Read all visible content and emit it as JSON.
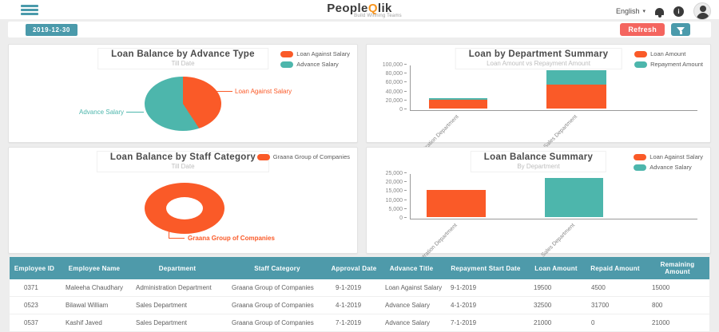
{
  "header": {
    "logo_people": "People",
    "logo_q": "Q",
    "logo_lik": "lik",
    "tagline": "Build Winning Teams",
    "language": "English",
    "caret_glyph": "▾",
    "info_glyph": "i"
  },
  "toolbar": {
    "date": "2019-12-30",
    "refresh": "Refresh"
  },
  "chart_data": [
    {
      "type": "pie",
      "title": "Loan Balance by  Advance Type",
      "subtitle": "Till Date",
      "slices": [
        {
          "label": "Loan Against Salary",
          "value": 15000,
          "color": "#fa5a28"
        },
        {
          "label": "Advance Salary",
          "value": 21800,
          "color": "#4db6ac"
        }
      ],
      "legend": [
        {
          "label": "Loan Against Salary",
          "color": "#fa5a28"
        },
        {
          "label": "Advance Salary",
          "color": "#4db6ac"
        }
      ],
      "legend_position": "top-right"
    },
    {
      "type": "bar",
      "stacked": true,
      "title": "Loan by Department Summary",
      "subtitle": "Loan Amount vs Repayment Amount",
      "categories": [
        "Administration Department",
        "Sales Department"
      ],
      "series": [
        {
          "name": "Loan Amount",
          "color": "#fa5a28",
          "values": [
            19500,
            53500
          ]
        },
        {
          "name": "Repayment Amount",
          "color": "#4db6ac",
          "values": [
            4500,
            31700
          ]
        }
      ],
      "ylim": [
        0,
        100000
      ],
      "ymax": 100000,
      "yticks": [
        "100,000",
        "80,000",
        "60,000",
        "40,000",
        "20,000",
        "0"
      ],
      "legend": [
        {
          "label": "Loan Amount",
          "color": "#fa5a28"
        },
        {
          "label": "Repayment Amount",
          "color": "#4db6ac"
        }
      ],
      "legend_position": "top-right",
      "grid": false
    },
    {
      "type": "pie",
      "donut": true,
      "title": "Loan Balance by  Staff Category",
      "subtitle": "Till Date",
      "slices": [
        {
          "label": "Graana Group of Companies",
          "value": 36800,
          "color": "#fa5a28"
        }
      ],
      "legend": [
        {
          "label": "Graana Group of Companies",
          "color": "#fa5a28"
        }
      ],
      "legend_position": "top-right"
    },
    {
      "type": "bar",
      "stacked": false,
      "title": "Loan Balance Summary",
      "subtitle": "By Department",
      "categories": [
        "Administration Department",
        "Sales Department"
      ],
      "series": [
        {
          "name": "Loan Against Salary",
          "color": "#fa5a28",
          "values": [
            15000,
            0
          ]
        },
        {
          "name": "Advance Salary",
          "color": "#4db6ac",
          "values": [
            0,
            21800
          ]
        }
      ],
      "ylim": [
        0,
        25000
      ],
      "ymax": 25000,
      "yticks": [
        "25,000",
        "20,000",
        "15,000",
        "10,000",
        "5,000",
        "0"
      ],
      "legend": [
        {
          "label": "Loan Against Salary",
          "color": "#fa5a28"
        },
        {
          "label": "Advance Salary",
          "color": "#4db6ac"
        }
      ],
      "legend_position": "top-right",
      "grid": false
    }
  ],
  "table": {
    "columns": [
      "Employee ID",
      "Employee Name",
      "Department",
      "Staff Category",
      "Approval Date",
      "Advance Title",
      "Repayment Start Date",
      "Loan Amount",
      "Repaid Amount",
      "Remaining Amount"
    ],
    "rows": [
      [
        "0371",
        "Maleeha Chaudhary",
        "Administration Department",
        "Graana Group of Companies",
        "9-1-2019",
        "Loan Against Salary",
        "9-1-2019",
        "19500",
        "4500",
        "15000"
      ],
      [
        "0523",
        "Bilawal William",
        "Sales Department",
        "Graana Group of Companies",
        "4-1-2019",
        "Advance Salary",
        "4-1-2019",
        "32500",
        "31700",
        "800"
      ],
      [
        "0537",
        "Kashif Javed",
        "Sales Department",
        "Graana Group of Companies",
        "7-1-2019",
        "Advance Salary",
        "7-1-2019",
        "21000",
        "0",
        "21000"
      ]
    ]
  },
  "colors": {
    "orange": "#fa5a28",
    "teal": "#4db6ac",
    "ui_teal": "#4a9aab",
    "refresh_red": "#f4655f",
    "table_header": "#4e9aaa",
    "logo_accent": "#f7941d"
  }
}
